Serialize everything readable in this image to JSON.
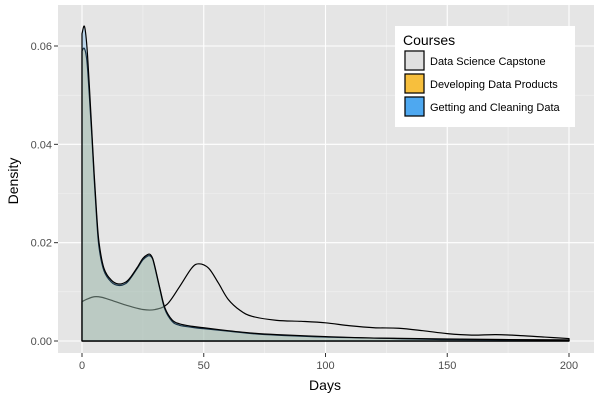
{
  "chart_data": {
    "type": "area",
    "xlabel": "Days",
    "ylabel": "Density",
    "xlim": [
      0,
      200
    ],
    "ylim": [
      0,
      0.065
    ],
    "x_ticks": [
      0,
      50,
      100,
      150,
      200
    ],
    "x_tick_labels": [
      "0",
      "50",
      "100",
      "150",
      "200"
    ],
    "y_ticks": [
      0,
      0.02,
      0.04,
      0.06
    ],
    "y_tick_labels": [
      "0.00",
      "0.02",
      "0.04",
      "0.06"
    ],
    "grid": true,
    "legend_position": "top-right",
    "legend_title": "Courses",
    "series": [
      {
        "name": "Data Science Capstone",
        "color": "#e0e0e0",
        "x": [
          0,
          2,
          5,
          8,
          12,
          18,
          25,
          30,
          35,
          40,
          45,
          48,
          52,
          56,
          60,
          65,
          70,
          80,
          90,
          100,
          110,
          120,
          130,
          140,
          150,
          160,
          170,
          180,
          190,
          200
        ],
        "y": [
          0.008,
          0.0085,
          0.009,
          0.0089,
          0.0083,
          0.0073,
          0.0064,
          0.0064,
          0.0075,
          0.011,
          0.0148,
          0.0157,
          0.0148,
          0.0118,
          0.0085,
          0.0062,
          0.005,
          0.0042,
          0.004,
          0.0037,
          0.0031,
          0.0027,
          0.0026,
          0.0021,
          0.0015,
          0.0012,
          0.0013,
          0.0011,
          0.0008,
          0.0005
        ]
      },
      {
        "name": "Developing Data Products",
        "color": "#f7bf3d",
        "x": [
          0,
          1,
          2,
          3,
          4,
          5,
          6,
          7,
          9,
          12,
          15,
          18,
          20,
          23,
          25,
          27,
          28,
          29,
          30,
          32,
          34,
          37,
          40,
          45,
          50,
          60,
          70,
          80,
          100,
          120,
          150,
          200
        ],
        "y": [
          0.059,
          0.0595,
          0.057,
          0.05,
          0.042,
          0.033,
          0.025,
          0.019,
          0.0143,
          0.012,
          0.0113,
          0.0117,
          0.0128,
          0.015,
          0.0165,
          0.0173,
          0.0173,
          0.0167,
          0.0148,
          0.0105,
          0.0065,
          0.004,
          0.0032,
          0.0028,
          0.0025,
          0.002,
          0.0015,
          0.0012,
          0.0008,
          0.0006,
          0.0003,
          0.0002
        ]
      },
      {
        "name": "Getting and Cleaning Data",
        "color": "#4ea8f0",
        "x": [
          0,
          1,
          2,
          3,
          4,
          5,
          6,
          7,
          9,
          12,
          15,
          18,
          20,
          23,
          25,
          27,
          28,
          29,
          30,
          32,
          34,
          37,
          40,
          45,
          50,
          60,
          70,
          80,
          100,
          120,
          150,
          200
        ],
        "y": [
          0.0625,
          0.064,
          0.06,
          0.052,
          0.043,
          0.034,
          0.026,
          0.02,
          0.0148,
          0.0124,
          0.0116,
          0.012,
          0.013,
          0.0152,
          0.0168,
          0.0176,
          0.0176,
          0.0168,
          0.015,
          0.0107,
          0.0068,
          0.0043,
          0.0035,
          0.003,
          0.0027,
          0.0021,
          0.0016,
          0.0013,
          0.0009,
          0.0006,
          0.0004,
          0.0002
        ]
      }
    ]
  }
}
